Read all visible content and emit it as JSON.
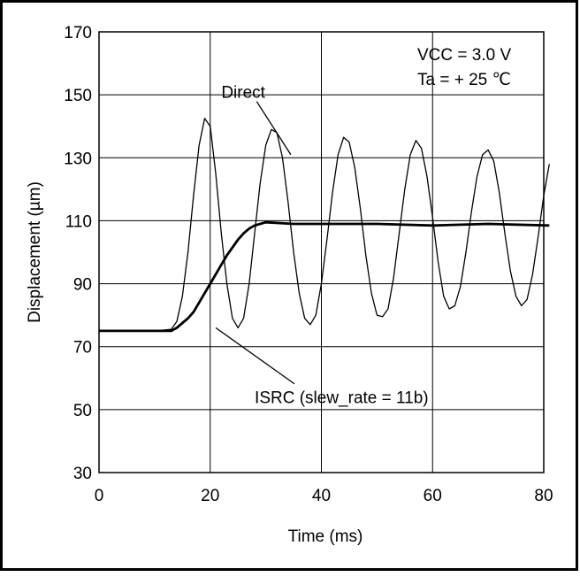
{
  "chart_data": {
    "type": "line",
    "xlabel": "Time (ms)",
    "ylabel": "Displacement (µm)",
    "xlim": [
      0,
      80
    ],
    "ylim": [
      30,
      170
    ],
    "x_ticks": [
      0,
      20,
      40,
      60,
      80
    ],
    "y_ticks": [
      30,
      50,
      70,
      90,
      110,
      130,
      150,
      170
    ],
    "grid": true,
    "conditions": [
      "VCC = 3.0 V",
      "Ta = + 25  ℃"
    ],
    "series": [
      {
        "name": "Direct",
        "points": [
          [
            0,
            75
          ],
          [
            5,
            75
          ],
          [
            10,
            75
          ],
          [
            13,
            75.5
          ],
          [
            14,
            78
          ],
          [
            15,
            86
          ],
          [
            16,
            100
          ],
          [
            17,
            118
          ],
          [
            18,
            134
          ],
          [
            19,
            142.5
          ],
          [
            20,
            140
          ],
          [
            21,
            125
          ],
          [
            22,
            106
          ],
          [
            23,
            90
          ],
          [
            24,
            79
          ],
          [
            25,
            76
          ],
          [
            26,
            79
          ],
          [
            27,
            90
          ],
          [
            28,
            106
          ],
          [
            29,
            122
          ],
          [
            30,
            134
          ],
          [
            31,
            139
          ],
          [
            32,
            138
          ],
          [
            33,
            130
          ],
          [
            34,
            116
          ],
          [
            35,
            100
          ],
          [
            36,
            87
          ],
          [
            37,
            79
          ],
          [
            38,
            77
          ],
          [
            39,
            80
          ],
          [
            40,
            90
          ],
          [
            41,
            104
          ],
          [
            42,
            119
          ],
          [
            43,
            131
          ],
          [
            44,
            136.5
          ],
          [
            45,
            135
          ],
          [
            46,
            127
          ],
          [
            47,
            114
          ],
          [
            48,
            99
          ],
          [
            49,
            87
          ],
          [
            50,
            80
          ],
          [
            51,
            79.5
          ],
          [
            52,
            82
          ],
          [
            53,
            92
          ],
          [
            54,
            106
          ],
          [
            55,
            120
          ],
          [
            56,
            131
          ],
          [
            57,
            135.5
          ],
          [
            58,
            133
          ],
          [
            59,
            124
          ],
          [
            60,
            111
          ],
          [
            61,
            97
          ],
          [
            62,
            86
          ],
          [
            63,
            82
          ],
          [
            64,
            83
          ],
          [
            65,
            89
          ],
          [
            66,
            100
          ],
          [
            67,
            113
          ],
          [
            68,
            124
          ],
          [
            69,
            131
          ],
          [
            70,
            132.5
          ],
          [
            71,
            129
          ],
          [
            72,
            119
          ],
          [
            73,
            106
          ],
          [
            74,
            94
          ],
          [
            75,
            86
          ],
          [
            76,
            83
          ],
          [
            77,
            85
          ],
          [
            78,
            93
          ],
          [
            79,
            105
          ],
          [
            80,
            118
          ],
          [
            81,
            128
          ]
        ]
      },
      {
        "name": "ISRC (slew_rate = 11b)",
        "points": [
          [
            0,
            75
          ],
          [
            5,
            75
          ],
          [
            10,
            75
          ],
          [
            13,
            75
          ],
          [
            14,
            76
          ],
          [
            15,
            77.5
          ],
          [
            16,
            79
          ],
          [
            17,
            81
          ],
          [
            18,
            84
          ],
          [
            19,
            87
          ],
          [
            20,
            90
          ],
          [
            21,
            93
          ],
          [
            22,
            96
          ],
          [
            23,
            99
          ],
          [
            24,
            101.5
          ],
          [
            25,
            104
          ],
          [
            26,
            106
          ],
          [
            27,
            107.5
          ],
          [
            28,
            108.5
          ],
          [
            29,
            109
          ],
          [
            30,
            109.5
          ],
          [
            35,
            109
          ],
          [
            40,
            109
          ],
          [
            50,
            109
          ],
          [
            60,
            108.5
          ],
          [
            70,
            109
          ],
          [
            81,
            108.5
          ]
        ]
      }
    ],
    "annotations": [
      {
        "text": "Direct",
        "x": 22,
        "y": 149,
        "points_to": [
          34.5,
          131
        ]
      },
      {
        "text": "ISRC (slew_rate = 11b)",
        "x": 28,
        "y": 52,
        "points_to": [
          21,
          76
        ]
      }
    ]
  }
}
